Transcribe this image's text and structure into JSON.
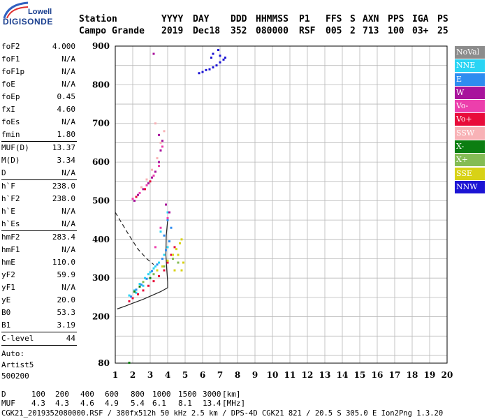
{
  "logo": {
    "top": "Lowell",
    "main": "DIGISONDE"
  },
  "header": {
    "row1": [
      "Station",
      "YYYY",
      "DAY",
      "DDD",
      "HHMMSS",
      "P1",
      "FFS",
      "S",
      "AXN",
      "PPS",
      "IGA",
      "PS"
    ],
    "row2": [
      "Campo Grande",
      "2019",
      "Dec18",
      "352",
      "080000",
      "RSF",
      "005",
      "2",
      "713",
      "100",
      "03+",
      "25"
    ]
  },
  "params": {
    "group1": [
      {
        "label": "foF2",
        "value": "4.000"
      },
      {
        "label": "foF1",
        "value": "N/A"
      },
      {
        "label": "foF1p",
        "value": "N/A"
      },
      {
        "label": "foE",
        "value": "N/A"
      },
      {
        "label": "foEp",
        "value": "0.45"
      },
      {
        "label": "fxI",
        "value": "4.60"
      },
      {
        "label": "foEs",
        "value": "N/A"
      },
      {
        "label": "fmin",
        "value": "1.80"
      }
    ],
    "group2": [
      {
        "label": "MUF(D)",
        "value": "13.37"
      },
      {
        "label": "M(D)",
        "value": "3.34"
      },
      {
        "label": "D",
        "value": "N/A"
      }
    ],
    "group3": [
      {
        "label": "h`F",
        "value": "238.0"
      },
      {
        "label": "h`F2",
        "value": "238.0"
      },
      {
        "label": "h`E",
        "value": "N/A"
      },
      {
        "label": "h`Es",
        "value": "N/A"
      }
    ],
    "group4": [
      {
        "label": "hmF2",
        "value": "283.4"
      },
      {
        "label": "hmF1",
        "value": "N/A"
      },
      {
        "label": "hmE",
        "value": "110.0"
      },
      {
        "label": "yF2",
        "value": "59.9"
      },
      {
        "label": "yF1",
        "value": "N/A"
      },
      {
        "label": "yE",
        "value": "20.0"
      },
      {
        "label": "B0",
        "value": "53.3"
      },
      {
        "label": "B1",
        "value": "3.19"
      }
    ],
    "group5": [
      {
        "label": "C-level",
        "value": "44"
      }
    ],
    "footer": [
      "Auto:",
      "Artist5",
      "500200"
    ]
  },
  "legend": [
    {
      "label": "NoVal",
      "color": "#8c8c8c"
    },
    {
      "label": "NNE",
      "color": "#29d4f4"
    },
    {
      "label": "E",
      "color": "#2e8cf0"
    },
    {
      "label": "W",
      "color": "#a8129c"
    },
    {
      "label": "Vo-",
      "color": "#ec3fac"
    },
    {
      "label": "Vo+",
      "color": "#e80c3a"
    },
    {
      "label": "SSW",
      "color": "#f8b2b6"
    },
    {
      "label": "X-",
      "color": "#0c7e12"
    },
    {
      "label": "X+",
      "color": "#84bc54"
    },
    {
      "label": "SSE",
      "color": "#d8d216"
    },
    {
      "label": "NNW",
      "color": "#1c14d4"
    }
  ],
  "plot": {
    "x_ticks": [
      "1",
      "2",
      "3",
      "4",
      "5",
      "6",
      "7",
      "8",
      "9",
      "10",
      "11",
      "12",
      "13",
      "14",
      "15",
      "16",
      "17",
      "18",
      "19",
      "20"
    ],
    "y_ticks": [
      "80",
      "200",
      "300",
      "400",
      "500",
      "600",
      "700",
      "800",
      "900"
    ]
  },
  "chart_data": {
    "type": "scatter",
    "title": "",
    "xlabel": "",
    "ylabel": "",
    "xlim": [
      1,
      20
    ],
    "ylim": [
      80,
      900
    ],
    "grid": true,
    "legend_placement": "right",
    "series": [
      {
        "name": "NNW",
        "color": "#1c14d4",
        "points": [
          [
            5.8,
            830
          ],
          [
            6.0,
            833
          ],
          [
            6.2,
            838
          ],
          [
            6.4,
            840
          ],
          [
            6.6,
            845
          ],
          [
            6.8,
            850
          ],
          [
            7.0,
            858
          ],
          [
            7.2,
            865
          ],
          [
            6.5,
            870
          ],
          [
            6.6,
            880
          ],
          [
            7.0,
            875
          ],
          [
            7.3,
            870
          ],
          [
            6.9,
            890
          ]
        ]
      },
      {
        "name": "NNE",
        "color": "#29d4f4",
        "points": [
          [
            1.8,
            255
          ],
          [
            2.1,
            268
          ],
          [
            2.4,
            285
          ],
          [
            2.7,
            300
          ],
          [
            3.0,
            315
          ],
          [
            3.3,
            330
          ],
          [
            2.2,
            262
          ],
          [
            2.6,
            280
          ],
          [
            2.9,
            310
          ],
          [
            3.2,
            325
          ],
          [
            3.5,
            340
          ],
          [
            3.8,
            360
          ],
          [
            4.0,
            380
          ],
          [
            3.6,
            420
          ],
          [
            4.0,
            470
          ]
        ]
      },
      {
        "name": "E",
        "color": "#2e8cf0",
        "points": [
          [
            1.9,
            252
          ],
          [
            2.2,
            270
          ],
          [
            2.5,
            283
          ],
          [
            2.8,
            298
          ],
          [
            3.1,
            318
          ],
          [
            3.4,
            335
          ],
          [
            3.7,
            350
          ],
          [
            3.9,
            372
          ],
          [
            4.1,
            395
          ],
          [
            4.2,
            430
          ],
          [
            4.0,
            450
          ],
          [
            3.8,
            410
          ]
        ]
      },
      {
        "name": "W",
        "color": "#a8129c",
        "points": [
          [
            2.1,
            500
          ],
          [
            2.3,
            515
          ],
          [
            2.6,
            530
          ],
          [
            2.9,
            545
          ],
          [
            3.1,
            560
          ],
          [
            3.3,
            575
          ],
          [
            3.5,
            600
          ],
          [
            3.6,
            630
          ],
          [
            3.7,
            655
          ],
          [
            3.5,
            670
          ],
          [
            3.2,
            880
          ],
          [
            3.9,
            490
          ],
          [
            4.1,
            470
          ]
        ]
      },
      {
        "name": "Vo-",
        "color": "#ec3fac",
        "points": [
          [
            2.0,
            505
          ],
          [
            2.4,
            520
          ],
          [
            2.8,
            540
          ],
          [
            3.2,
            565
          ],
          [
            3.5,
            590
          ],
          [
            3.7,
            640
          ],
          [
            3.3,
            380
          ],
          [
            3.6,
            430
          ],
          [
            4.0,
            455
          ]
        ]
      },
      {
        "name": "Vo+",
        "color": "#e80c3a",
        "points": [
          [
            1.8,
            240
          ],
          [
            2.0,
            248
          ],
          [
            2.3,
            258
          ],
          [
            2.6,
            268
          ],
          [
            2.9,
            280
          ],
          [
            3.2,
            292
          ],
          [
            3.5,
            305
          ],
          [
            3.8,
            320
          ],
          [
            4.0,
            340
          ],
          [
            4.2,
            360
          ],
          [
            4.4,
            380
          ],
          [
            2.2,
            510
          ],
          [
            2.7,
            530
          ],
          [
            3.0,
            550
          ]
        ]
      },
      {
        "name": "SSW",
        "color": "#f8b2b6",
        "points": [
          [
            2.5,
            535
          ],
          [
            2.8,
            555
          ],
          [
            3.1,
            580
          ],
          [
            3.4,
            610
          ],
          [
            3.6,
            650
          ],
          [
            3.8,
            680
          ],
          [
            3.3,
            700
          ]
        ]
      },
      {
        "name": "X-",
        "color": "#0c7e12",
        "points": [
          [
            1.8,
            81
          ],
          [
            2.1,
            265
          ],
          [
            2.4,
            278
          ],
          [
            3.0,
            300
          ]
        ]
      },
      {
        "name": "X+",
        "color": "#84bc54",
        "points": [
          [
            2.6,
            290
          ],
          [
            3.2,
            310
          ],
          [
            3.8,
            330
          ],
          [
            4.3,
            350
          ],
          [
            4.6,
            340
          ]
        ]
      },
      {
        "name": "SSE",
        "color": "#d8d216",
        "points": [
          [
            3.4,
            320
          ],
          [
            3.7,
            330
          ],
          [
            4.0,
            345
          ],
          [
            4.3,
            360
          ],
          [
            4.5,
            375
          ],
          [
            4.7,
            390
          ],
          [
            4.8,
            400
          ],
          [
            4.6,
            360
          ],
          [
            4.9,
            340
          ],
          [
            4.4,
            320
          ],
          [
            4.8,
            320
          ]
        ]
      }
    ],
    "curves": [
      {
        "name": "solid",
        "points": [
          [
            1.1,
            220
          ],
          [
            1.6,
            228
          ],
          [
            2.0,
            235
          ],
          [
            2.6,
            245
          ],
          [
            3.1,
            255
          ],
          [
            3.6,
            265
          ],
          [
            4.0,
            275
          ],
          [
            4.0,
            290
          ],
          [
            3.95,
            320
          ],
          [
            3.9,
            360
          ],
          [
            3.92,
            410
          ],
          [
            4.0,
            450
          ]
        ]
      },
      {
        "name": "dashed",
        "points": [
          [
            1.0,
            470
          ],
          [
            1.4,
            440
          ],
          [
            1.8,
            410
          ],
          [
            2.3,
            375
          ],
          [
            2.8,
            350
          ],
          [
            3.2,
            335
          ]
        ]
      }
    ]
  },
  "bottom": {
    "d_label": "D",
    "d_values": [
      "100",
      "200",
      "400",
      "600",
      "800",
      "1000",
      "1500",
      "3000",
      "[km]"
    ],
    "muf_label": "MUF",
    "muf_values": [
      "4.3",
      "4.3",
      "4.6",
      "4.9",
      "5.4",
      "6.1",
      "8.1",
      "13.4",
      "[MHz]"
    ],
    "footer": "CGK21_2019352080000.RSF / 380fx512h 50 kHz 2.5 km / DPS-4D CGK21 821 / 20.5 S 305.0 E Ion2Png 1.3.20"
  }
}
